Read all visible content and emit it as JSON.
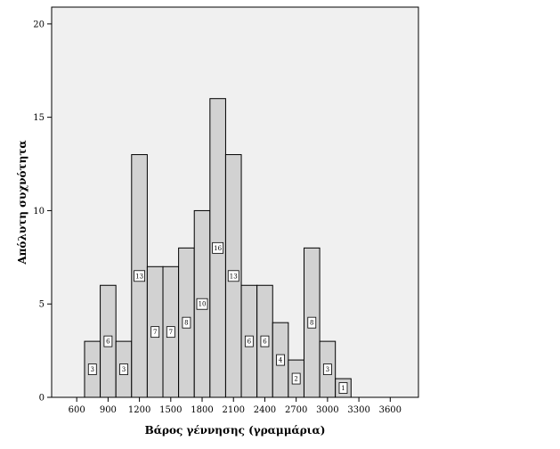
{
  "chart_data": {
    "type": "bar",
    "title": "",
    "xlabel": "Βάρος γέννησης (γραμμάρια)",
    "ylabel": "Απόλυτη συχνότητα",
    "bin_width": 150,
    "bins": [
      {
        "start": 675,
        "end": 825,
        "count": 3
      },
      {
        "start": 825,
        "end": 975,
        "count": 6
      },
      {
        "start": 975,
        "end": 1125,
        "count": 3
      },
      {
        "start": 1125,
        "end": 1275,
        "count": 13
      },
      {
        "start": 1275,
        "end": 1425,
        "count": 7
      },
      {
        "start": 1425,
        "end": 1575,
        "count": 7
      },
      {
        "start": 1575,
        "end": 1725,
        "count": 8
      },
      {
        "start": 1725,
        "end": 1875,
        "count": 10
      },
      {
        "start": 1875,
        "end": 2025,
        "count": 16
      },
      {
        "start": 2025,
        "end": 2175,
        "count": 13
      },
      {
        "start": 2175,
        "end": 2325,
        "count": 6
      },
      {
        "start": 2325,
        "end": 2475,
        "count": 6
      },
      {
        "start": 2475,
        "end": 2625,
        "count": 4
      },
      {
        "start": 2625,
        "end": 2775,
        "count": 2
      },
      {
        "start": 2775,
        "end": 2925,
        "count": 8
      },
      {
        "start": 2925,
        "end": 3075,
        "count": 3
      },
      {
        "start": 3075,
        "end": 3225,
        "count": 1
      }
    ],
    "x_ticks": [
      600,
      900,
      1200,
      1500,
      1800,
      2100,
      2400,
      2700,
      3000,
      3300,
      3600
    ],
    "y_ticks": [
      0,
      5,
      10,
      15,
      20
    ],
    "xlim": [
      360,
      3870
    ],
    "ylim": [
      0,
      20.9
    ],
    "grid": false,
    "colors": {
      "bar_fill": "#d2d2d2",
      "bar_stroke": "#000000",
      "plot_background": "#f0f0f0",
      "page_background": "#ffffff"
    }
  }
}
